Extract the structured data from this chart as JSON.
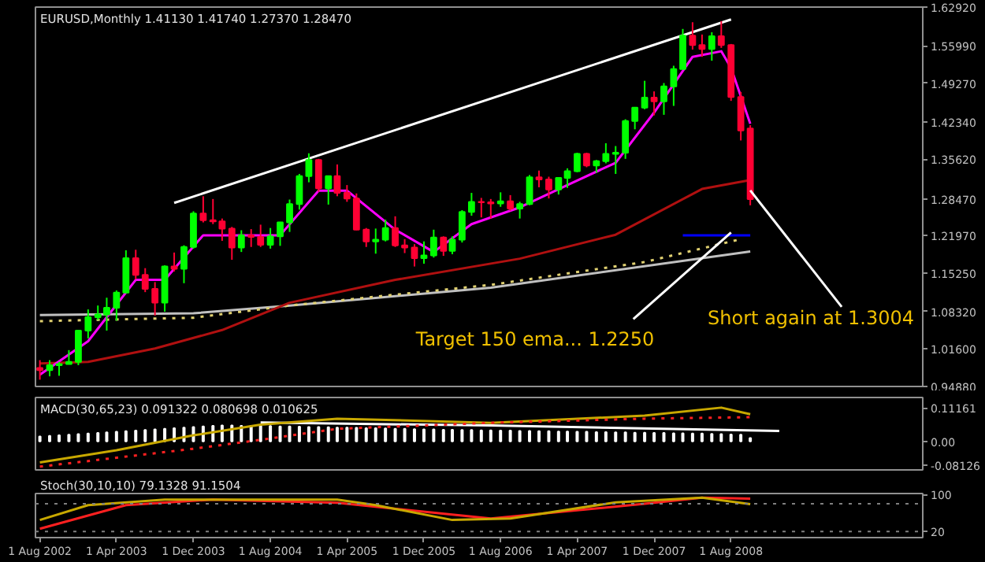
{
  "chart_data": [
    {
      "type": "candlestick",
      "title": "EURUSD,Monthly  1.41130 1.41740 1.27370 1.28470",
      "xlim": [
        "2002-07-18",
        "2010-04-01"
      ],
      "ylim": [
        0.9488,
        1.6292
      ],
      "tick_labels": "y",
      "yticks": [
        {
          "value": 1.6292,
          "label": "1.62920"
        },
        {
          "value": 1.5599,
          "label": "1.55990"
        },
        {
          "value": 1.4927,
          "label": "1.49270"
        },
        {
          "value": 1.4234,
          "label": "1.42340"
        },
        {
          "value": 1.3562,
          "label": "1.35620"
        },
        {
          "value": 1.2847,
          "label": "1.28470"
        },
        {
          "value": 1.2197,
          "label": "1.21970"
        },
        {
          "value": 1.1525,
          "label": "1.15250"
        },
        {
          "value": 1.0832,
          "label": "1.08320"
        },
        {
          "value": 1.016,
          "label": "1.01600"
        },
        {
          "value": 0.9488,
          "label": "0.94880"
        }
      ],
      "series": [
        {
          "type": "line",
          "color": "#c0c0c0",
          "x": [
            "2002-08",
            "2003-12",
            "2004-10",
            "2006-07",
            "2008-10"
          ],
          "values": [
            1.077,
            1.08,
            1.094,
            1.126,
            1.191
          ]
        },
        {
          "type": "line",
          "color": "#e0d070",
          "line_style": "dotted",
          "x": [
            "2002-08",
            "2003-12",
            "2004-10",
            "2006-07",
            "2007-11",
            "2008-09"
          ],
          "values": [
            1.066,
            1.072,
            1.094,
            1.131,
            1.172,
            1.213
          ]
        },
        {
          "type": "line",
          "color": "#b01010",
          "x": [
            "2002-08",
            "2003-01",
            "2003-08",
            "2004-03",
            "2004-10",
            "2005-09",
            "2006-10",
            "2007-08",
            "2008-05",
            "2008-10"
          ],
          "values": [
            0.99,
            0.993,
            1.017,
            1.05,
            1.099,
            1.14,
            1.178,
            1.221,
            1.303,
            1.319
          ]
        },
        {
          "type": "line",
          "color": "#ff00ff",
          "x": [
            "2002-08",
            "2003-01",
            "2003-06",
            "2003-09",
            "2004-01",
            "2004-06",
            "2004-09",
            "2005-01",
            "2005-04",
            "2005-09",
            "2006-01",
            "2006-05",
            "2006-10",
            "2007-03",
            "2007-08",
            "2007-12",
            "2008-04",
            "2008-07",
            "2008-08",
            "2008-10"
          ],
          "values": [
            0.97,
            1.03,
            1.14,
            1.14,
            1.22,
            1.22,
            1.22,
            1.3,
            1.3,
            1.23,
            1.19,
            1.24,
            1.27,
            1.31,
            1.35,
            1.44,
            1.54,
            1.55,
            1.52,
            1.42
          ]
        },
        {
          "type": "line",
          "color": "#ffffff",
          "x": [
            "2003-10",
            "2008-08"
          ],
          "values": [
            1.278,
            1.607
          ]
        },
        {
          "type": "line",
          "color": "#0000ff",
          "x": [
            "2008-03",
            "2008-10"
          ],
          "values": [
            1.22,
            1.22
          ]
        },
        {
          "color": "#00ff00",
          "x": [
            "2002-09",
            "2002-10",
            "2002-11",
            "2002-12",
            "2003-01",
            "2003-02",
            "2003-03",
            "2003-04",
            "2003-05",
            "2003-09",
            "2003-11",
            "2003-12",
            "2004-05",
            "2004-08",
            "2004-09",
            "2004-10",
            "2004-11",
            "2004-12",
            "2005-02",
            "2005-07",
            "2005-08",
            "2005-12",
            "2006-01",
            "2006-03",
            "2006-04",
            "2006-05",
            "2006-08",
            "2006-10",
            "2006-11",
            "2007-02",
            "2007-03",
            "2007-04",
            "2007-06",
            "2007-07",
            "2007-08",
            "2007-09",
            "2007-10",
            "2007-11",
            "2008-01",
            "2008-02",
            "2008-03",
            "2008-06"
          ],
          "ohlc": [
            [
              0.978,
              0.996,
              0.967,
              0.987
            ],
            [
              0.987,
              0.993,
              0.968,
              0.989
            ],
            [
              0.989,
              1.014,
              0.989,
              0.993
            ],
            [
              0.993,
              1.05,
              0.987,
              1.049
            ],
            [
              1.049,
              1.087,
              1.035,
              1.073
            ],
            [
              1.073,
              1.094,
              1.068,
              1.078
            ],
            [
              1.078,
              1.108,
              1.049,
              1.09
            ],
            [
              1.09,
              1.121,
              1.067,
              1.117
            ],
            [
              1.117,
              1.193,
              1.117,
              1.179
            ],
            [
              1.099,
              1.166,
              1.083,
              1.164
            ],
            [
              1.16,
              1.202,
              1.134,
              1.199
            ],
            [
              1.199,
              1.263,
              1.196,
              1.259
            ],
            [
              1.198,
              1.229,
              1.19,
              1.22
            ],
            [
              1.203,
              1.233,
              1.196,
              1.218
            ],
            [
              1.218,
              1.244,
              1.201,
              1.243
            ],
            [
              1.243,
              1.284,
              1.226,
              1.276
            ],
            [
              1.276,
              1.33,
              1.266,
              1.326
            ],
            [
              1.326,
              1.367,
              1.315,
              1.355
            ],
            [
              1.304,
              1.326,
              1.275,
              1.326
            ],
            [
              1.209,
              1.232,
              1.187,
              1.212
            ],
            [
              1.212,
              1.248,
              1.209,
              1.233
            ],
            [
              1.179,
              1.209,
              1.169,
              1.184
            ],
            [
              1.184,
              1.23,
              1.18,
              1.216
            ],
            [
              1.192,
              1.218,
              1.186,
              1.212
            ],
            [
              1.212,
              1.265,
              1.207,
              1.262
            ],
            [
              1.262,
              1.296,
              1.255,
              1.28
            ],
            [
              1.277,
              1.297,
              1.271,
              1.281
            ],
            [
              1.268,
              1.28,
              1.25,
              1.276
            ],
            [
              1.276,
              1.328,
              1.274,
              1.324
            ],
            [
              1.302,
              1.324,
              1.293,
              1.323
            ],
            [
              1.323,
              1.34,
              1.305,
              1.335
            ],
            [
              1.335,
              1.368,
              1.333,
              1.366
            ],
            [
              1.345,
              1.355,
              1.332,
              1.353
            ],
            [
              1.353,
              1.385,
              1.349,
              1.366
            ],
            [
              1.366,
              1.38,
              1.33,
              1.368
            ],
            [
              1.368,
              1.428,
              1.357,
              1.425
            ],
            [
              1.425,
              1.45,
              1.41,
              1.449
            ],
            [
              1.449,
              1.497,
              1.446,
              1.467
            ],
            [
              1.46,
              1.493,
              1.436,
              1.487
            ],
            [
              1.487,
              1.524,
              1.452,
              1.518
            ],
            [
              1.518,
              1.59,
              1.518,
              1.578
            ],
            [
              1.554,
              1.584,
              1.533,
              1.577
            ]
          ]
        },
        {
          "color": "#ff0033",
          "x": [
            "2002-08",
            "2003-06",
            "2003-07",
            "2003-08",
            "2003-10",
            "2004-01",
            "2004-02",
            "2004-03",
            "2004-04",
            "2004-06",
            "2004-07",
            "2005-01",
            "2005-03",
            "2005-04",
            "2005-05",
            "2005-06",
            "2005-09",
            "2005-10",
            "2005-11",
            "2006-02",
            "2006-06",
            "2006-07",
            "2006-09",
            "2006-12",
            "2007-01",
            "2007-05",
            "2007-12",
            "2008-04",
            "2008-05",
            "2008-07",
            "2008-08",
            "2008-09",
            "2008-10"
          ],
          "ohlc": [
            [
              0.982,
              0.996,
              0.961,
              0.978
            ],
            [
              1.179,
              1.194,
              1.141,
              1.149
            ],
            [
              1.149,
              1.161,
              1.118,
              1.124
            ],
            [
              1.124,
              1.136,
              1.076,
              1.099
            ],
            [
              1.164,
              1.189,
              1.155,
              1.16
            ],
            [
              1.259,
              1.29,
              1.243,
              1.247
            ],
            [
              1.247,
              1.285,
              1.24,
              1.245
            ],
            [
              1.245,
              1.25,
              1.21,
              1.232
            ],
            [
              1.232,
              1.235,
              1.176,
              1.198
            ],
            [
              1.22,
              1.231,
              1.199,
              1.217
            ],
            [
              1.217,
              1.239,
              1.199,
              1.203
            ],
            [
              1.355,
              1.357,
              1.298,
              1.304
            ],
            [
              1.326,
              1.347,
              1.29,
              1.296
            ],
            [
              1.296,
              1.31,
              1.28,
              1.286
            ],
            [
              1.286,
              1.295,
              1.229,
              1.23
            ],
            [
              1.23,
              1.233,
              1.199,
              1.209
            ],
            [
              1.233,
              1.254,
              1.199,
              1.202
            ],
            [
              1.202,
              1.213,
              1.188,
              1.198
            ],
            [
              1.198,
              1.204,
              1.164,
              1.179
            ],
            [
              1.216,
              1.218,
              1.183,
              1.192
            ],
            [
              1.28,
              1.287,
              1.252,
              1.279
            ],
            [
              1.279,
              1.285,
              1.25,
              1.277
            ],
            [
              1.281,
              1.292,
              1.264,
              1.268
            ],
            [
              1.324,
              1.336,
              1.306,
              1.32
            ],
            [
              1.32,
              1.325,
              1.286,
              1.302
            ],
            [
              1.366,
              1.368,
              1.342,
              1.345
            ],
            [
              1.467,
              1.478,
              1.435,
              1.46
            ],
            [
              1.578,
              1.602,
              1.553,
              1.561
            ],
            [
              1.561,
              1.58,
              1.54,
              1.554
            ],
            [
              1.577,
              1.604,
              1.556,
              1.561
            ],
            [
              1.561,
              1.563,
              1.461,
              1.468
            ],
            [
              1.468,
              1.477,
              1.39,
              1.408
            ],
            [
              1.4113,
              1.4174,
              1.2737,
              1.2847
            ]
          ]
        }
      ],
      "annotations": [
        {
          "text": "Short again at 1.3004",
          "x": "2008-10",
          "y": 1.3004
        },
        {
          "text": "Target 150 ema... 1.2250",
          "x": "2008-08",
          "y": 1.225
        }
      ]
    },
    {
      "type": "bar",
      "title": "MACD(30,65,23) 0.091322 0.080698 0.010625",
      "xlim": [
        "2002-07-18",
        "2010-04-01"
      ],
      "ylim": [
        -0.096,
        0.147
      ],
      "tick_labels": "y",
      "yticks": [
        0.11161,
        {
          "value": 0,
          "label": "0.00"
        },
        -0.08126
      ],
      "series": [
        {
          "color": "#ffffff",
          "x": [
            "2002-08",
            "2002-09",
            "2002-10",
            "2002-11",
            "2002-12",
            "2003-01",
            "2003-02",
            "2003-03",
            "2003-04",
            "2003-05",
            "2003-06",
            "2003-07",
            "2003-08",
            "2003-09",
            "2003-10",
            "2003-11",
            "2003-12",
            "2004-01",
            "2004-02",
            "2004-03",
            "2004-04",
            "2004-05",
            "2004-06",
            "2004-07",
            "2004-08",
            "2004-09",
            "2004-10",
            "2004-11",
            "2004-12",
            "2005-01",
            "2005-02",
            "2005-03",
            "2005-04",
            "2005-05",
            "2005-06",
            "2005-07",
            "2005-08",
            "2005-09",
            "2005-10",
            "2005-11",
            "2005-12",
            "2006-01",
            "2006-02",
            "2006-03",
            "2006-04",
            "2006-05",
            "2006-06",
            "2006-07",
            "2006-08",
            "2006-09",
            "2006-10",
            "2006-11",
            "2006-12",
            "2007-01",
            "2007-02",
            "2007-03",
            "2007-04",
            "2007-05",
            "2007-06",
            "2007-07",
            "2007-08",
            "2007-09",
            "2007-10",
            "2007-11",
            "2007-12",
            "2008-01",
            "2008-02",
            "2008-03",
            "2008-04",
            "2008-05",
            "2008-06",
            "2008-07",
            "2008-08",
            "2008-09",
            "2008-10"
          ],
          "values": [
            0.016,
            0.018,
            0.02,
            0.022,
            0.024,
            0.026,
            0.028,
            0.03,
            0.032,
            0.034,
            0.036,
            0.038,
            0.04,
            0.042,
            0.044,
            0.046,
            0.048,
            0.05,
            0.052,
            0.053,
            0.053,
            0.052,
            0.052,
            0.051,
            0.051,
            0.05,
            0.05,
            0.049,
            0.048,
            0.048,
            0.047,
            0.046,
            0.046,
            0.045,
            0.044,
            0.044,
            0.043,
            0.042,
            0.042,
            0.041,
            0.04,
            0.04,
            0.039,
            0.039,
            0.038,
            0.038,
            0.037,
            0.037,
            0.036,
            0.036,
            0.035,
            0.035,
            0.034,
            0.034,
            0.033,
            0.033,
            0.032,
            0.032,
            0.031,
            0.031,
            0.03,
            0.03,
            0.029,
            0.029,
            0.028,
            0.028,
            0.027,
            0.027,
            0.026,
            0.026,
            0.025,
            0.024,
            0.023,
            0.022,
            0.011
          ]
        },
        {
          "type": "line",
          "color": "#ffffff",
          "x": [
            "2004-07",
            "2006-07",
            "2009-01"
          ],
          "values": [
            0.063,
            0.053,
            0.035
          ]
        },
        {
          "type": "line",
          "color": "#c8a800",
          "x": [
            "2002-08",
            "2003-04",
            "2003-12",
            "2004-07",
            "2005-03",
            "2006-07",
            "2007-11",
            "2008-07",
            "2008-10"
          ],
          "values": [
            -0.071,
            -0.03,
            0.02,
            0.056,
            0.076,
            0.062,
            0.086,
            0.113,
            0.091
          ]
        },
        {
          "type": "line",
          "color": "#ff2020",
          "line_style": "dotted",
          "x": [
            "2002-08",
            "2003-12",
            "2004-07",
            "2005-03",
            "2006-07",
            "2007-11",
            "2008-10"
          ],
          "values": [
            -0.085,
            -0.025,
            0.005,
            0.042,
            0.062,
            0.076,
            0.081
          ]
        }
      ]
    },
    {
      "type": "line",
      "title": "Stoch(30,10,10) 79.1328 91.1504",
      "xlim": [
        "2002-07-18",
        "2010-04-01"
      ],
      "ylim": [
        7,
        102
      ],
      "xticks": [
        {
          "value": "2002-08-01",
          "label": "1 Aug 2002"
        },
        {
          "value": "2003-04-01",
          "label": "1 Apr 2003"
        },
        {
          "value": "2003-12-01",
          "label": "1 Dec 2003"
        },
        {
          "value": "2004-08-01",
          "label": "1 Aug 2004"
        },
        {
          "value": "2005-04-01",
          "label": "1 Apr 2005"
        },
        {
          "value": "2005-12-01",
          "label": "1 Dec 2005"
        },
        {
          "value": "2006-08-01",
          "label": "1 Aug 2006"
        },
        {
          "value": "2007-04-01",
          "label": "1 Apr 2007"
        },
        {
          "value": "2007-12-01",
          "label": "1 Dec 2007"
        },
        {
          "value": "2008-08-01",
          "label": "1 Aug 2008"
        }
      ],
      "yticks": [
        100,
        20
      ],
      "ref_lines": [
        {
          "axis": "y",
          "value": 80,
          "color": "#808080",
          "line_style": "dotted"
        },
        {
          "axis": "y",
          "value": 20,
          "color": "#808080",
          "line_style": "dotted"
        }
      ],
      "series": [
        {
          "color": "#ff2020",
          "x": [
            "2002-08",
            "2003-05",
            "2004-02",
            "2005-03",
            "2006-07",
            "2007-11",
            "2008-05",
            "2008-10"
          ],
          "values": [
            26,
            77,
            89,
            82,
            48,
            80,
            93,
            91
          ]
        },
        {
          "color": "#c8a800",
          "x": [
            "2002-08",
            "2003-01",
            "2003-09",
            "2005-03",
            "2005-07",
            "2006-03",
            "2006-09",
            "2007-08",
            "2008-05",
            "2008-10"
          ],
          "values": [
            45,
            77,
            89,
            89,
            77,
            45,
            48,
            83,
            93,
            79
          ]
        }
      ]
    }
  ]
}
